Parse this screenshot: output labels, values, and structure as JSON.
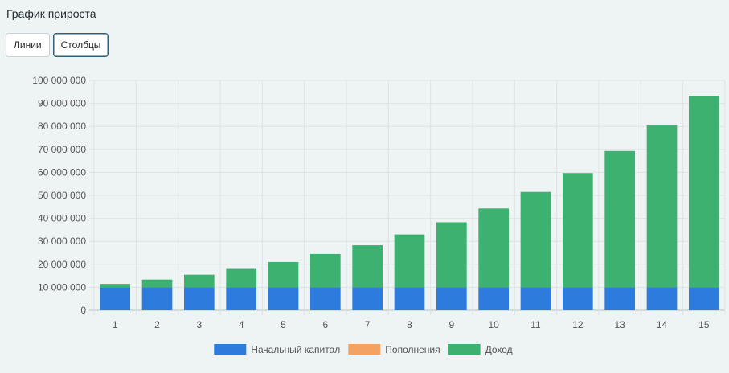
{
  "header": {
    "title": "График прироста"
  },
  "view_toggle": {
    "lines_label": "Линии",
    "columns_label": "Столбцы",
    "selected": "Столбцы"
  },
  "chart_data": {
    "type": "bar",
    "stacked": true,
    "categories": [
      "1",
      "2",
      "3",
      "4",
      "5",
      "6",
      "7",
      "8",
      "9",
      "10",
      "11",
      "12",
      "13",
      "14",
      "15"
    ],
    "series": [
      {
        "name": "Начальный капитал",
        "color": "#2d7bdc",
        "values": [
          10000000,
          10000000,
          10000000,
          10000000,
          10000000,
          10000000,
          10000000,
          10000000,
          10000000,
          10000000,
          10000000,
          10000000,
          10000000,
          10000000,
          10000000
        ]
      },
      {
        "name": "Пополнения",
        "color": "#f4a261",
        "values": [
          0,
          0,
          0,
          0,
          0,
          0,
          0,
          0,
          0,
          0,
          0,
          0,
          0,
          0,
          0
        ]
      },
      {
        "name": "Доход",
        "color": "#3db270",
        "values": [
          1500000,
          3400000,
          5500000,
          8000000,
          11000000,
          14500000,
          18300000,
          23000000,
          28300000,
          34300000,
          41500000,
          49700000,
          59300000,
          70400000,
          83300000
        ]
      }
    ],
    "ylim": [
      0,
      100000000
    ],
    "yticks": [
      "0",
      "10 000 000",
      "20 000 000",
      "30 000 000",
      "40 000 000",
      "50 000 000",
      "60 000 000",
      "70 000 000",
      "80 000 000",
      "90 000 000",
      "100 000 000"
    ],
    "grid": true,
    "legend_position": "bottom"
  }
}
